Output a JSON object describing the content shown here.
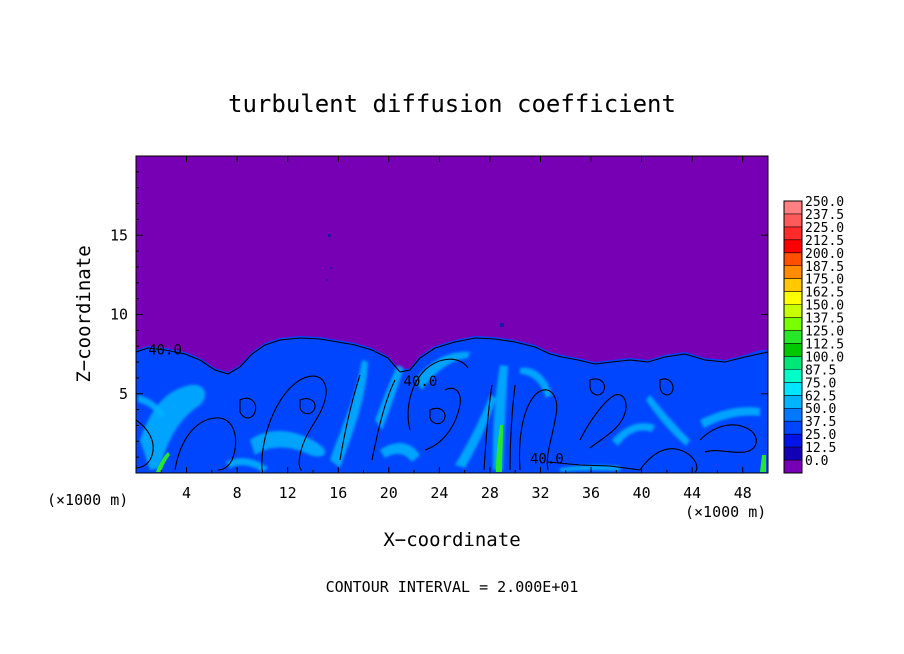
{
  "chart_data": {
    "type": "heatmap",
    "title": "turbulent diffusion coefficient",
    "xlabel": "X−coordinate",
    "ylabel": "Z−coordinate",
    "x_unit_left": "(×1000 m)",
    "x_unit_right": "(×1000 m)",
    "footer": "CONTOUR INTERVAL = 2.000E+01",
    "xlim": [
      0,
      50
    ],
    "ylim": [
      0,
      20
    ],
    "x_ticks": [
      "4",
      "8",
      "12",
      "16",
      "20",
      "24",
      "28",
      "32",
      "36",
      "40",
      "44",
      "48"
    ],
    "x_tick_values": [
      4,
      8,
      12,
      16,
      20,
      24,
      28,
      32,
      36,
      40,
      44,
      48
    ],
    "y_ticks": [
      "5",
      "10",
      "15"
    ],
    "y_tick_values": [
      5,
      10,
      15
    ],
    "contour_labels": [
      {
        "text": "40.0",
        "x": 2.3,
        "z": 7.8
      },
      {
        "text": "40.0",
        "x": 22.5,
        "z": 5.8
      },
      {
        "text": "40.0",
        "x": 32.5,
        "z": 0.9
      }
    ],
    "colorbar": {
      "labels": [
        "250.0",
        "237.5",
        "225.0",
        "212.5",
        "200.0",
        "187.5",
        "175.0",
        "162.5",
        "150.0",
        "137.5",
        "125.0",
        "112.5",
        "100.0",
        "87.5",
        "75.0",
        "62.5",
        "50.0",
        "37.5",
        "25.0",
        "12.5",
        "0.0"
      ],
      "colors": [
        "#ff8080",
        "#ff5a5a",
        "#ff2a2a",
        "#ff0000",
        "#ff5000",
        "#ff8c00",
        "#ffc800",
        "#ffff00",
        "#c8ff00",
        "#78ff00",
        "#28e628",
        "#00c800",
        "#00e678",
        "#00ffc8",
        "#00e6ff",
        "#00b4ff",
        "#0078ff",
        "#0046ff",
        "#0014e6",
        "#1400b4",
        "#7800b4"
      ]
    },
    "field": {
      "background_value": 0.0,
      "turbulent_layer_top_z": 8.0,
      "typical_layer_value": 37.5,
      "plume_peak_value": 87.5
    }
  }
}
